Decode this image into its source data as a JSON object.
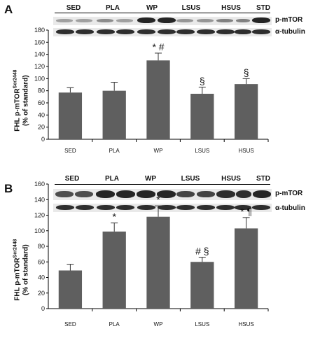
{
  "panels": [
    {
      "letter": "A",
      "blot_lanes": [
        "SED",
        "PLA",
        "WP",
        "LSUS",
        "HSUS",
        "STD"
      ],
      "band_labels": [
        "p-mTOR",
        "α-tubulin"
      ],
      "ylabel_line1": "FHL  p-mTOR",
      "ylabel_sup": "Ser2448",
      "ylabel_line2": "(% of standard)"
    },
    {
      "letter": "B",
      "blot_lanes": [
        "SED",
        "PLA",
        "WP",
        "LSUS",
        "HSUS",
        "STD"
      ],
      "band_labels": [
        "p-mTOR",
        "α-tubulin"
      ],
      "ylabel_line1": "FHL  p-mTOR",
      "ylabel_sup": "Ser2448",
      "ylabel_line2": "(% of standard)"
    }
  ],
  "chart_data": [
    {
      "type": "bar",
      "categories": [
        "SED",
        "PLA",
        "WP",
        "LSUS",
        "HSUS"
      ],
      "values": [
        77,
        80,
        130,
        75,
        91
      ],
      "errors": [
        8,
        14,
        12,
        11,
        9
      ],
      "annotations": [
        "",
        "",
        "* #",
        "§",
        "§"
      ],
      "ylim": [
        0,
        180
      ],
      "yticks": [
        0,
        20,
        40,
        60,
        80,
        100,
        120,
        140,
        160,
        180
      ],
      "bar_color": "#5f5f5f"
    },
    {
      "type": "bar",
      "categories": [
        "SED",
        "PLA",
        "WP",
        "LSUS",
        "HSUS"
      ],
      "values": [
        49,
        99,
        118,
        60,
        103
      ],
      "errors": [
        8,
        11,
        14,
        6,
        14
      ],
      "annotations": [
        "",
        "*",
        "*",
        "# §",
        "* ¶"
      ],
      "ylim": [
        0,
        160
      ],
      "yticks": [
        0,
        20,
        40,
        60,
        80,
        100,
        120,
        140,
        160
      ],
      "bar_color": "#5f5f5f"
    }
  ]
}
